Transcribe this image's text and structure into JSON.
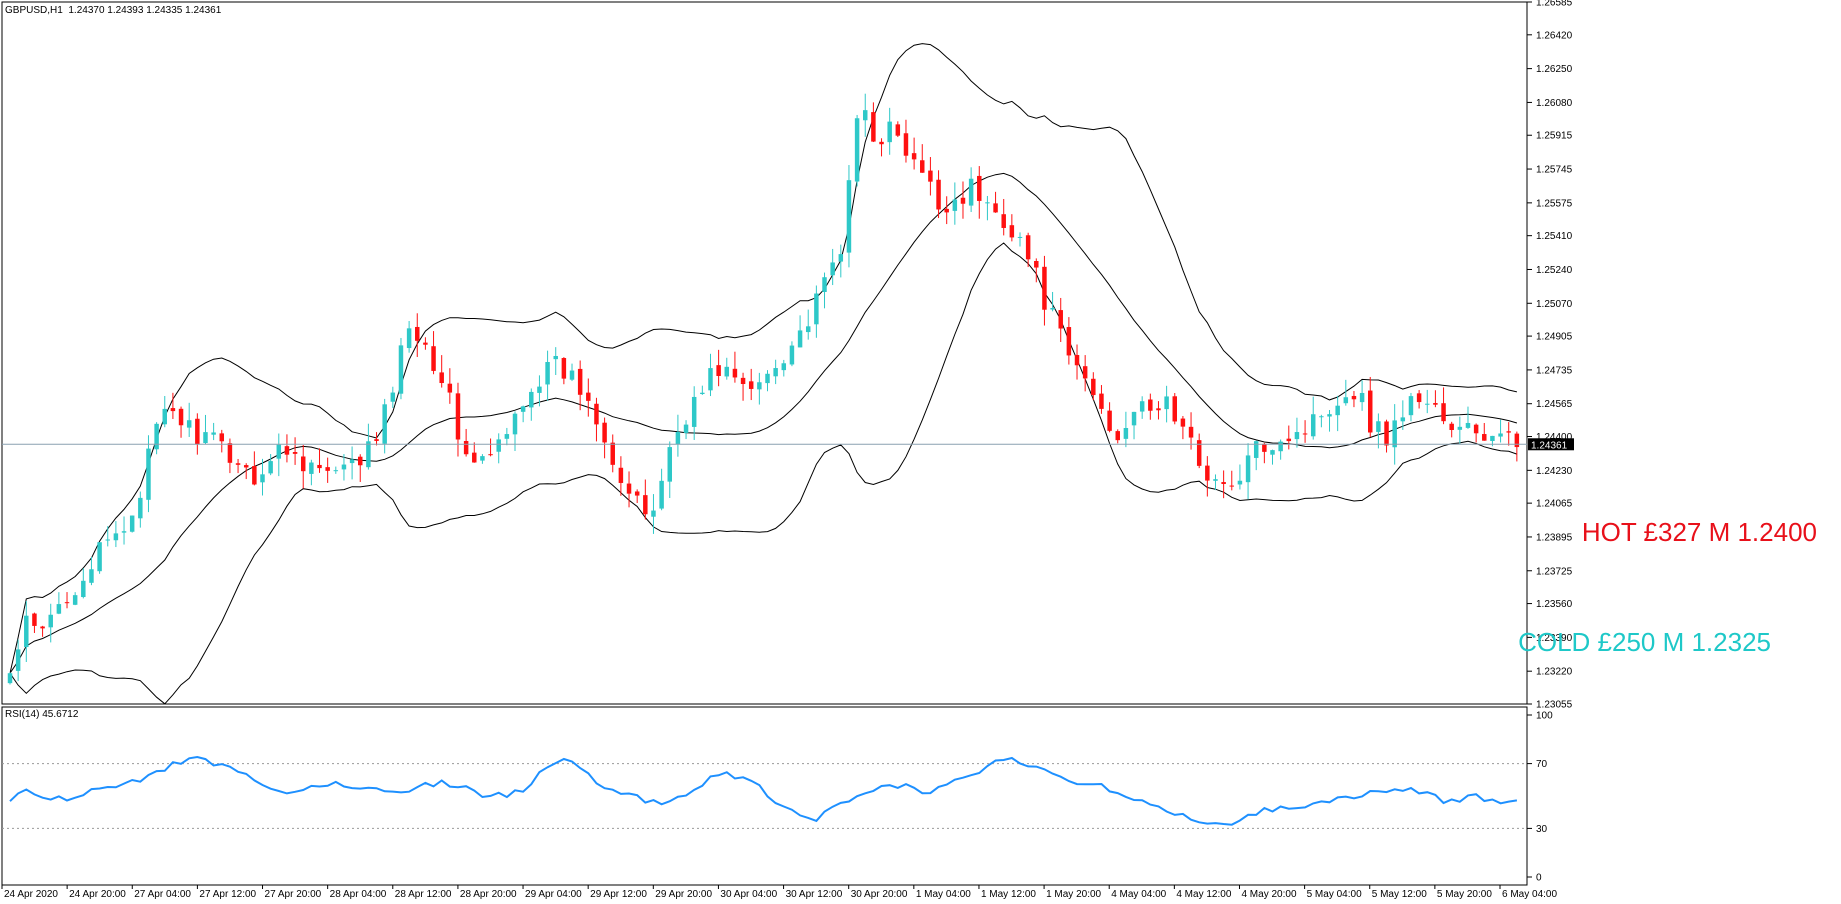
{
  "header": {
    "symbol": "GBPUSD,H1",
    "ohlc": "1.24370 1.24393 1.24335 1.24361",
    "rsi_label": "RSI(14) 45.6712"
  },
  "annotations": {
    "hot": "HOT £327 M 1.2400",
    "cold": "COLD £250 M 1.2325"
  },
  "colors": {
    "bull": "#2ec8c8",
    "bear": "#ff1010",
    "bands": "#000000",
    "rsi": "#1e90ff",
    "price_line": "#8aa0b0",
    "hot": "#e8101a",
    "cold": "#1ec8c8"
  },
  "chart_data": [
    {
      "type": "candlestick",
      "title": "GBPUSD,H1",
      "ylim": [
        1.23055,
        1.26585
      ],
      "yticks": [
        "1.26585",
        "1.26420",
        "1.26250",
        "1.26080",
        "1.25915",
        "1.25745",
        "1.25575",
        "1.25410",
        "1.25240",
        "1.25070",
        "1.24905",
        "1.24735",
        "1.24565",
        "1.24400",
        "1.24230",
        "1.24065",
        "1.23895",
        "1.23725",
        "1.23560",
        "1.23390",
        "1.23220",
        "1.23055"
      ],
      "current_price": "1.24361",
      "bollinger": true,
      "x_ticks": [
        "24 Apr 2020",
        "24 Apr 20:00",
        "27 Apr 04:00",
        "27 Apr 12:00",
        "27 Apr 20:00",
        "28 Apr 04:00",
        "28 Apr 12:00",
        "28 Apr 20:00",
        "29 Apr 04:00",
        "29 Apr 12:00",
        "29 Apr 20:00",
        "30 Apr 04:00",
        "30 Apr 12:00",
        "30 Apr 20:00",
        "1 May 04:00",
        "1 May 12:00",
        "1 May 20:00",
        "4 May 04:00",
        "4 May 12:00",
        "4 May 20:00",
        "5 May 04:00",
        "5 May 12:00",
        "5 May 20:00",
        "6 May 04:00"
      ],
      "close_anchors": [
        1.232,
        1.2345,
        1.234,
        1.2355,
        1.2365,
        1.2375,
        1.2385,
        1.2392,
        1.241,
        1.244,
        1.2455,
        1.2445,
        1.244,
        1.2435,
        1.243,
        1.242,
        1.2425,
        1.2435,
        1.243,
        1.2425,
        1.242,
        1.2422,
        1.243,
        1.244,
        1.247,
        1.25,
        1.2485,
        1.247,
        1.244,
        1.2425,
        1.243,
        1.244,
        1.246,
        1.247,
        1.2475,
        1.247,
        1.246,
        1.2445,
        1.242,
        1.2405,
        1.24,
        1.243,
        1.245,
        1.246,
        1.2475,
        1.2472,
        1.246,
        1.247,
        1.248,
        1.249,
        1.25,
        1.252,
        1.254,
        1.261,
        1.259,
        1.2595,
        1.258,
        1.257,
        1.2555,
        1.256,
        1.2565,
        1.2555,
        1.255,
        1.254,
        1.252,
        1.25,
        1.248,
        1.247,
        1.2455,
        1.244,
        1.2455,
        1.245,
        1.246,
        1.2445,
        1.243,
        1.242,
        1.241,
        1.2425,
        1.2435,
        1.244,
        1.2442,
        1.2445,
        1.2455,
        1.246,
        1.2465,
        1.2445,
        1.244,
        1.2455,
        1.246,
        1.2455,
        1.244,
        1.2445,
        1.244,
        1.2438,
        1.2436
      ],
      "rsi": {
        "label": "RSI(14) 45.6712",
        "ylim": [
          0,
          100
        ],
        "levels": [
          30,
          70
        ],
        "yticks": [
          "100",
          "70",
          "30",
          "0"
        ],
        "value": 45.6712,
        "anchors": [
          48,
          55,
          52,
          47,
          49,
          52,
          53,
          55,
          57,
          60,
          63,
          68,
          72,
          73,
          70,
          68,
          65,
          58,
          55,
          52,
          52,
          55,
          58,
          57,
          56,
          55,
          52,
          53,
          55,
          57,
          58,
          57,
          55,
          51,
          50,
          52,
          55,
          64,
          70,
          72,
          68,
          55,
          52,
          50,
          48,
          46,
          45,
          50,
          57,
          62,
          63,
          62,
          60,
          45,
          42,
          38,
          35,
          40,
          45,
          48,
          52,
          55,
          57,
          55,
          52,
          55,
          60,
          64,
          66,
          74,
          72,
          70,
          68,
          63,
          60,
          58,
          56,
          54,
          50,
          47,
          44,
          40,
          36,
          34,
          35,
          33,
          38,
          40,
          42,
          44,
          43,
          47,
          48,
          49,
          50,
          52,
          54,
          55,
          54,
          50,
          46,
          48,
          50,
          48,
          47,
          46
        ]
      }
    }
  ]
}
